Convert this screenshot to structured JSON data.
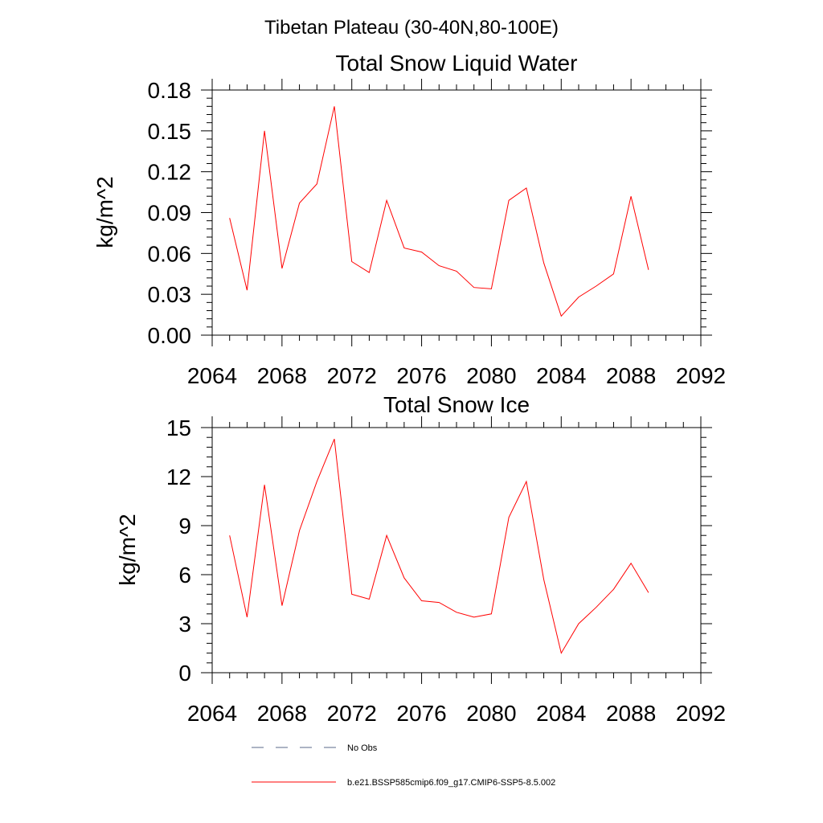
{
  "figure": {
    "suptitle": "Tibetan Plateau (30-40N,80-100E)"
  },
  "chart_data": [
    {
      "type": "line",
      "title": "Total Snow Liquid Water",
      "xlabel": "",
      "ylabel": "kg/m^2",
      "xlim": [
        2064,
        2092
      ],
      "ylim": [
        0,
        0.18
      ],
      "xticks": [
        "2064",
        "2068",
        "2072",
        "2076",
        "2080",
        "2084",
        "2088",
        "2092"
      ],
      "yticks": [
        "0.00",
        "0.03",
        "0.06",
        "0.09",
        "0.12",
        "0.15",
        "0.18"
      ],
      "x": [
        2065,
        2066,
        2067,
        2068,
        2069,
        2070,
        2071,
        2072,
        2073,
        2074,
        2075,
        2076,
        2077,
        2078,
        2079,
        2080,
        2081,
        2082,
        2083,
        2084,
        2085,
        2086,
        2087,
        2088,
        2089
      ],
      "series": [
        {
          "name": "b.e21.BSSP585cmip6.f09_g17.CMIP6-SSP5-8.5.002",
          "color": "#ff0000",
          "values": [
            0.086,
            0.033,
            0.15,
            0.049,
            0.097,
            0.111,
            0.168,
            0.054,
            0.046,
            0.099,
            0.064,
            0.061,
            0.051,
            0.047,
            0.035,
            0.034,
            0.099,
            0.108,
            0.053,
            0.014,
            0.028,
            0.036,
            0.045,
            0.102,
            0.048
          ]
        }
      ],
      "grid": false
    },
    {
      "type": "line",
      "title": "Total Snow Ice",
      "xlabel": "",
      "ylabel": "kg/m^2",
      "xlim": [
        2064,
        2092
      ],
      "ylim": [
        0,
        15
      ],
      "xticks": [
        "2064",
        "2068",
        "2072",
        "2076",
        "2080",
        "2084",
        "2088",
        "2092"
      ],
      "yticks": [
        "0",
        "3",
        "6",
        "9",
        "12",
        "15"
      ],
      "x": [
        2065,
        2066,
        2067,
        2068,
        2069,
        2070,
        2071,
        2072,
        2073,
        2074,
        2075,
        2076,
        2077,
        2078,
        2079,
        2080,
        2081,
        2082,
        2083,
        2084,
        2085,
        2086,
        2087,
        2088,
        2089
      ],
      "series": [
        {
          "name": "b.e21.BSSP585cmip6.f09_g17.CMIP6-SSP5-8.5.002",
          "color": "#ff0000",
          "values": [
            8.4,
            3.4,
            11.5,
            4.1,
            8.7,
            11.7,
            14.3,
            4.8,
            4.5,
            8.4,
            5.8,
            4.4,
            4.3,
            3.7,
            3.4,
            3.6,
            9.5,
            11.7,
            5.7,
            1.2,
            3.0,
            4.0,
            5.1,
            6.7,
            4.9
          ]
        }
      ],
      "grid": false
    }
  ],
  "legend": {
    "placement": "bottom",
    "items": [
      {
        "label": "No Obs",
        "style": "dashed",
        "color": "#5a6a8a"
      },
      {
        "label": "b.e21.BSSP585cmip6.f09_g17.CMIP6-SSP5-8.5.002",
        "style": "solid",
        "color": "#ff0000"
      }
    ]
  }
}
